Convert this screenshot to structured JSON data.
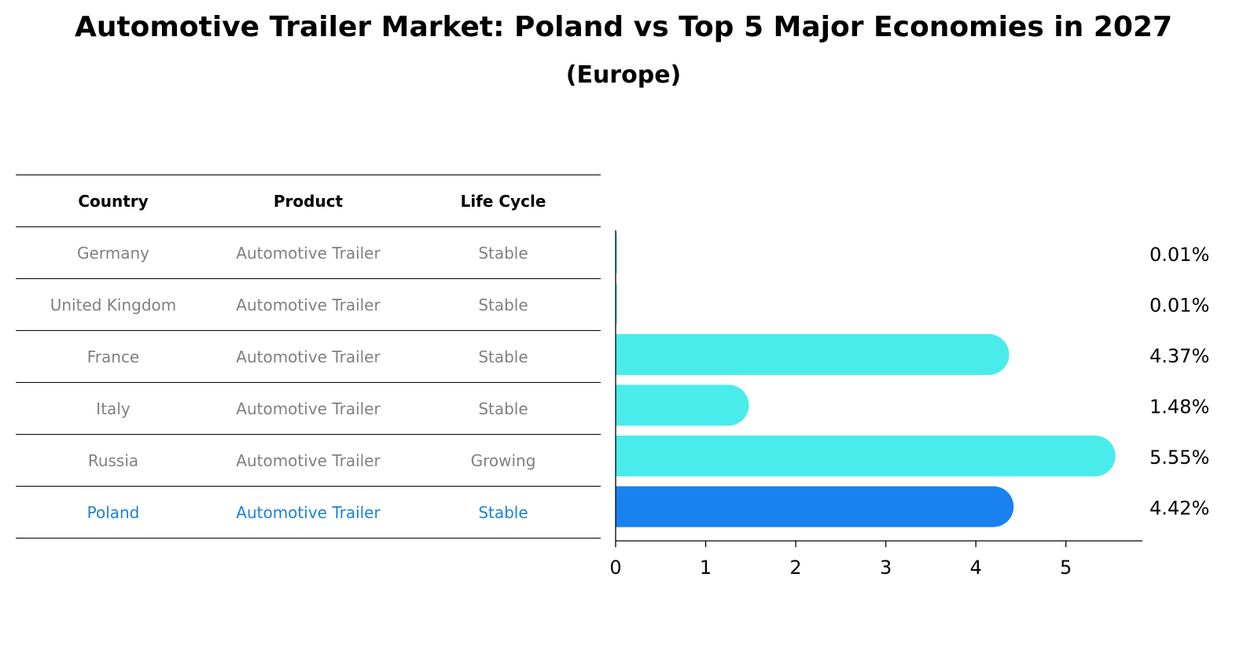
{
  "title": "Automotive Trailer Market: Poland vs Top 5 Major Economies in 2027",
  "subtitle": "(Europe)",
  "table": {
    "headers": [
      "Country",
      "Product",
      "Life Cycle"
    ],
    "rows": [
      {
        "country": "Germany",
        "product": "Automotive Trailer",
        "life_cycle": "Stable"
      },
      {
        "country": "United Kingdom",
        "product": "Automotive Trailer",
        "life_cycle": "Stable"
      },
      {
        "country": "France",
        "product": "Automotive Trailer",
        "life_cycle": "Stable"
      },
      {
        "country": "Italy",
        "product": "Automotive Trailer",
        "life_cycle": "Stable"
      },
      {
        "country": "Russia",
        "product": "Automotive Trailer",
        "life_cycle": "Growing"
      },
      {
        "country": "Poland",
        "product": "Automotive Trailer",
        "life_cycle": "Stable"
      }
    ],
    "highlight_row": "Poland"
  },
  "colors": {
    "bar": "#4aeceb",
    "highlight": "#1a82f0",
    "highlight_text": "#1a82d8",
    "muted_text": "#808080"
  },
  "chart_data": {
    "type": "bar",
    "orientation": "horizontal",
    "categories": [
      "Germany",
      "United Kingdom",
      "France",
      "Italy",
      "Russia",
      "Poland"
    ],
    "values": [
      0.01,
      0.01,
      4.37,
      1.48,
      5.55,
      4.42
    ],
    "value_labels": [
      "0.01%",
      "0.01%",
      "4.37%",
      "1.48%",
      "5.55%",
      "4.42%"
    ],
    "highlight": "Poland",
    "x_ticks": [
      0,
      1,
      2,
      3,
      4,
      5
    ],
    "xlim": [
      0,
      5.85
    ],
    "grid": false
  }
}
